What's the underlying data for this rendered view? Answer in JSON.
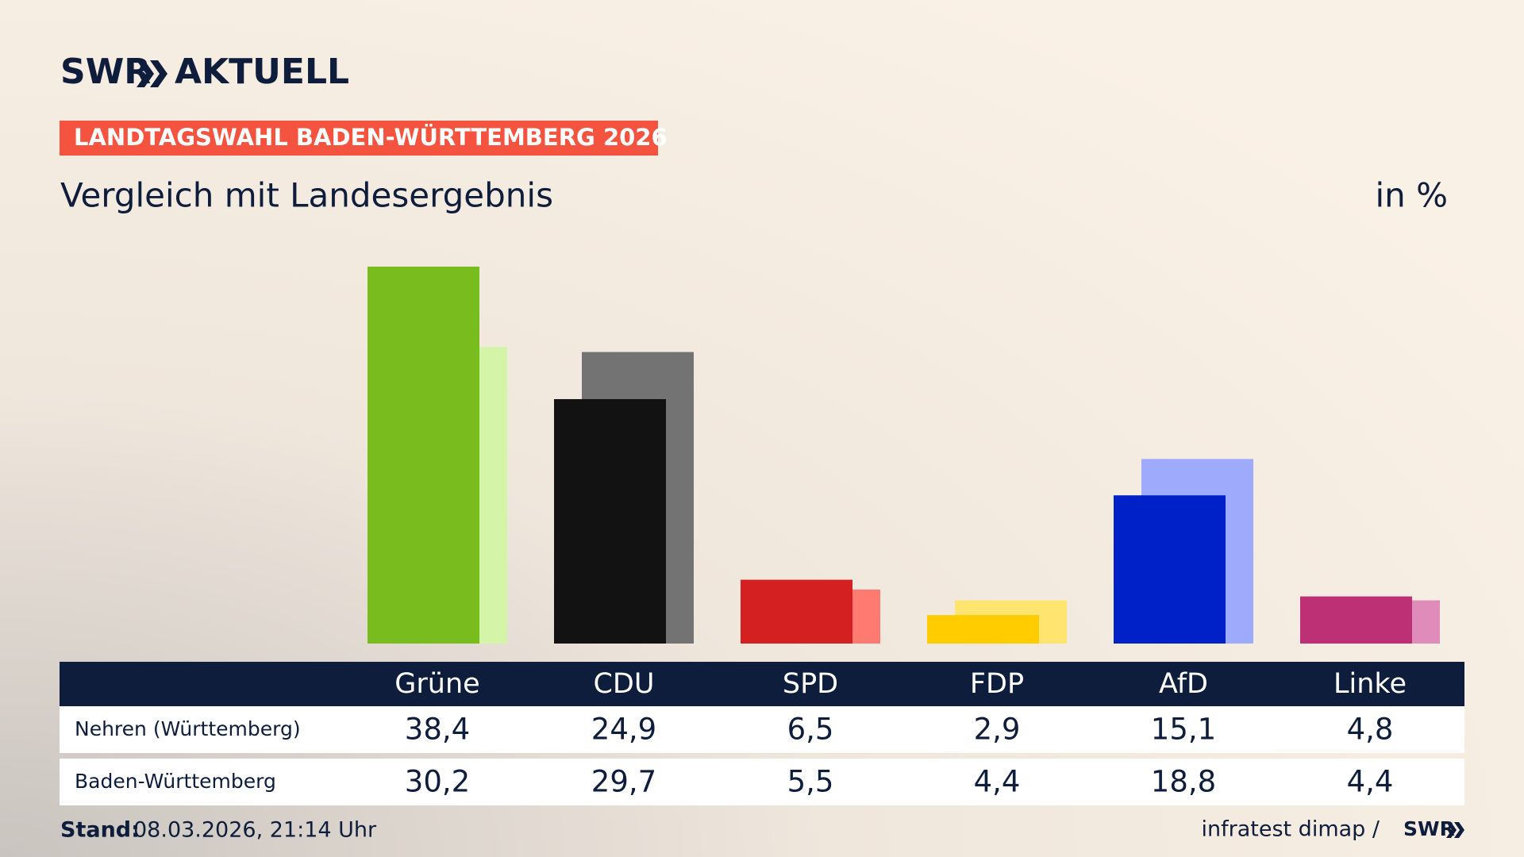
{
  "logo": {
    "brand": "SWR",
    "product": "AKTUELL"
  },
  "chart_data": {
    "type": "bar",
    "tag": "LANDTAGSWAHL BADEN-WÜRTTEMBERG 2026",
    "title": "Vergleich mit Landesergebnis",
    "unit_label": "in %",
    "categories": [
      "Grüne",
      "CDU",
      "SPD",
      "FDP",
      "AfD",
      "Linke"
    ],
    "series": [
      {
        "name": "Nehren (Württemberg)",
        "colors": [
          "#78bc1e",
          "#121212",
          "#d42020",
          "#ffcc00",
          "#0021c8",
          "#bd3075"
        ],
        "values": [
          38.4,
          24.9,
          6.5,
          2.9,
          15.1,
          4.8
        ],
        "value_labels": [
          "38,4",
          "24,9",
          "6,5",
          "2,9",
          "15,1",
          "4,8"
        ]
      },
      {
        "name": "Baden-Württemberg",
        "colors": [
          "#d4f5a8",
          "#737373",
          "#ff7a70",
          "#ffe470",
          "#9eaafc",
          "#df8cbb"
        ],
        "values": [
          30.2,
          29.7,
          5.5,
          4.4,
          18.8,
          4.4
        ],
        "value_labels": [
          "30,2",
          "29,7",
          "5,5",
          "4,4",
          "18,8",
          "4,4"
        ]
      }
    ]
  },
  "footer": {
    "stand_label": "Stand:",
    "stand_value": "08.03.2026, 21:14 Uhr",
    "source": "infratest dimap /",
    "source_brand": "SWR"
  }
}
